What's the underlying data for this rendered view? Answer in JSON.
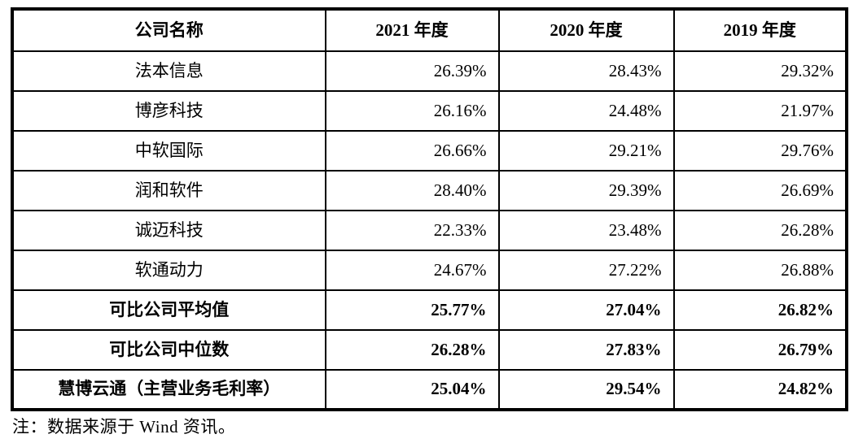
{
  "table": {
    "header": {
      "company": "公司名称",
      "y2021": "2021 年度",
      "y2020": "2020 年度",
      "y2019": "2019 年度"
    },
    "rows": [
      {
        "name": "法本信息",
        "values": [
          "26.39%",
          "28.43%",
          "29.32%"
        ]
      },
      {
        "name": "博彦科技",
        "values": [
          "26.16%",
          "24.48%",
          "21.97%"
        ]
      },
      {
        "name": "中软国际",
        "values": [
          "26.66%",
          "29.21%",
          "29.76%"
        ]
      },
      {
        "name": "润和软件",
        "values": [
          "28.40%",
          "29.39%",
          "26.69%"
        ]
      },
      {
        "name": "诚迈科技",
        "values": [
          "22.33%",
          "23.48%",
          "26.28%"
        ]
      },
      {
        "name": "软通动力",
        "values": [
          "24.67%",
          "27.22%",
          "26.88%"
        ]
      },
      {
        "name": "可比公司平均值",
        "values": [
          "25.77%",
          "27.04%",
          "26.82%"
        ],
        "bold": true
      },
      {
        "name": "可比公司中位数",
        "values": [
          "26.28%",
          "27.83%",
          "26.79%"
        ],
        "bold": true
      },
      {
        "name": "慧博云通（主营业务毛利率）",
        "values": [
          "25.04%",
          "29.54%",
          "24.82%"
        ],
        "bold": true
      }
    ]
  },
  "note": "注：数据来源于 Wind 资讯。",
  "colors": {
    "border": "#000000",
    "text": "#000000",
    "background": "#ffffff"
  }
}
